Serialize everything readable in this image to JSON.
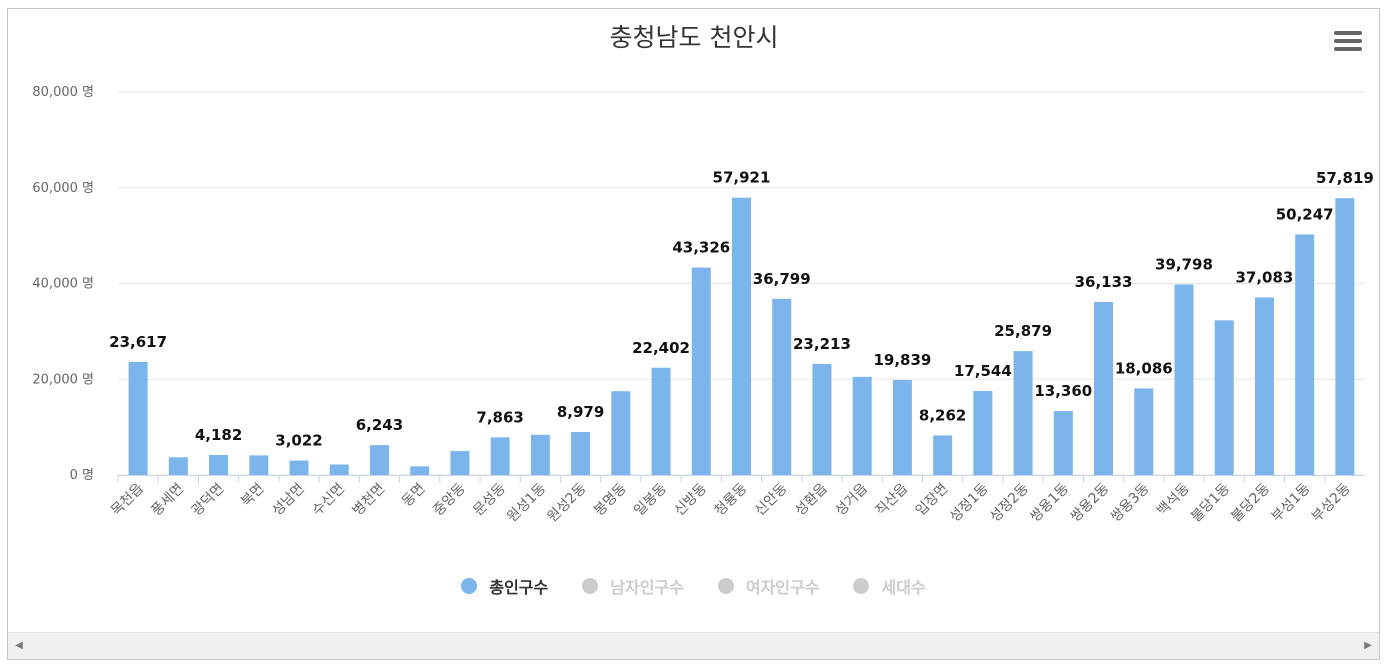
{
  "colors": {
    "bar": "#7cb5ec",
    "grid": "#e6e6e6",
    "text": "#333333",
    "axis_text": "#666666",
    "inactive": "#cccccc"
  },
  "menu": {
    "icon": "hamburger-menu-icon"
  },
  "scrollbar": {
    "left_icon": "◀",
    "right_icon": "▶"
  },
  "legend": [
    {
      "label": "총인구수",
      "active": true
    },
    {
      "label": "남자인구수",
      "active": false
    },
    {
      "label": "여자인구수",
      "active": false
    },
    {
      "label": "세대수",
      "active": false
    }
  ],
  "chart_data": {
    "type": "bar",
    "title": "충청남도 천안시",
    "ylim": [
      0,
      80000
    ],
    "yticks": [
      0,
      20000,
      40000,
      60000,
      80000
    ],
    "ytick_labels": [
      "0 명",
      "20,000 명",
      "40,000 명",
      "60,000 명",
      "80,000 명"
    ],
    "series_name": "총인구수",
    "categories": [
      "목천읍",
      "풍세면",
      "광덕면",
      "북면",
      "성남면",
      "수신면",
      "병천면",
      "동면",
      "중앙동",
      "문성동",
      "원성1동",
      "원성2동",
      "봉명동",
      "일봉동",
      "신방동",
      "청룡동",
      "신안동",
      "성환읍",
      "성거읍",
      "직산읍",
      "입장면",
      "성정1동",
      "성정2동",
      "쌍용1동",
      "쌍용2동",
      "쌍용3동",
      "백석동",
      "불당1동",
      "불당2동",
      "부성1동",
      "부성2동"
    ],
    "values": [
      23617,
      3700,
      4182,
      4100,
      3022,
      2200,
      6243,
      1800,
      5000,
      7863,
      8400,
      8979,
      17500,
      22402,
      43326,
      57921,
      36799,
      23213,
      20500,
      19839,
      8262,
      17544,
      25879,
      13360,
      36133,
      18086,
      39798,
      32300,
      37083,
      50247,
      57819
    ],
    "labels": [
      "23,617",
      "",
      "4,182",
      "",
      "3,022",
      "",
      "6,243",
      "",
      "",
      "7,863",
      "",
      "8,979",
      "",
      "22,402",
      "43,326",
      "57,921",
      "36,799",
      "23,213",
      "",
      "19,839",
      "8,262",
      "17,544",
      "25,879",
      "13,360",
      "36,133",
      "18,086",
      "39,798",
      "",
      "37,083",
      "50,247",
      "57,819"
    ]
  }
}
